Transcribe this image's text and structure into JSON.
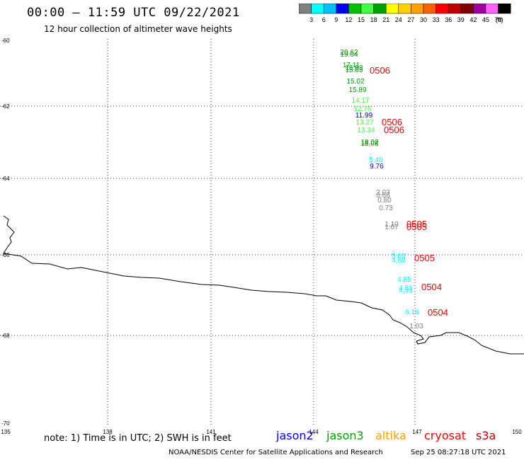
{
  "header": {
    "title": "00:00 – 11:59 UTC 09/22/2021",
    "subtitle": "12 hour collection of altimeter wave heights"
  },
  "colorbar": {
    "colors": [
      "#808080",
      "#00ffff",
      "#00c0ff",
      "#0000ff",
      "#00c000",
      "#40ff40",
      "#00a000",
      "#ffff00",
      "#ffd000",
      "#ffa000",
      "#ff6000",
      "#ff0000",
      "#c00000",
      "#800000",
      "#a000a0",
      "#ff60ff",
      "#000000"
    ],
    "labels": [
      "3",
      "6",
      "9",
      "12",
      "15",
      "18",
      "21",
      "24",
      "27",
      "30",
      "33",
      "36",
      "39",
      "42",
      "45",
      "70"
    ],
    "unit": "(ft)"
  },
  "axes": {
    "lat_labels": [
      "-60",
      "-62",
      "-64",
      "-66",
      "-68",
      "-70"
    ],
    "lon_labels": [
      "135",
      "138",
      "141",
      "144",
      "147",
      "150"
    ]
  },
  "observations": [
    {
      "text": "20.62",
      "color": "#00a000"
    },
    {
      "text": "19.04",
      "color": "#00a000"
    },
    {
      "text": "17.11",
      "color": "#00a000"
    },
    {
      "text": "15.93",
      "color": "#00a000"
    },
    {
      "text": "15.85",
      "color": "#00a000"
    },
    {
      "text": "15.02",
      "color": "#00a000"
    },
    {
      "text": "15.89",
      "color": "#00a000"
    },
    {
      "text": "14.17",
      "color": "#40ff40"
    },
    {
      "text": "12.76",
      "color": "#40ff40"
    },
    {
      "text": "11.99",
      "color": "#0000ff"
    },
    {
      "text": "13.27",
      "color": "#40ff40"
    },
    {
      "text": "13.34",
      "color": "#40ff40"
    },
    {
      "text": "18.02",
      "color": "#00a000"
    },
    {
      "text": "18.08",
      "color": "#00a000"
    },
    {
      "text": "5.40",
      "color": "#00ffff"
    },
    {
      "text": "9.76",
      "color": "#0000ff"
    },
    {
      "text": "2.03",
      "color": "#808080"
    },
    {
      "text": "0.66",
      "color": "#808080"
    },
    {
      "text": "0.80",
      "color": "#808080"
    },
    {
      "text": "0.73",
      "color": "#808080"
    },
    {
      "text": "1.10",
      "color": "#808080"
    },
    {
      "text": "1.07",
      "color": "#808080"
    },
    {
      "text": "5.03",
      "color": "#00ffff"
    },
    {
      "text": "4.89",
      "color": "#00ffff"
    },
    {
      "text": "4.85",
      "color": "#00ffff"
    },
    {
      "text": "4.81",
      "color": "#00ffff"
    },
    {
      "text": "4.93",
      "color": "#00ffff"
    },
    {
      "text": "6.16",
      "color": "#00ffff"
    },
    {
      "text": "1.03",
      "color": "#808080"
    }
  ],
  "time_labels": [
    "0506",
    "0506",
    "0506",
    "0505",
    "0505",
    "0505",
    "0504",
    "0504"
  ],
  "time_label_color": "#ff0000",
  "footer": {
    "note": "note: 1) Time is in UTC; 2) SWH is in feet",
    "satellites": [
      {
        "name": "jason2",
        "color": "#0000ff"
      },
      {
        "name": "jason3",
        "color": "#00a000"
      },
      {
        "name": "altika",
        "color": "#ffa000"
      },
      {
        "name": "cryosat",
        "color": "#ff0000"
      },
      {
        "name": "s3a",
        "color": "#c00000"
      }
    ],
    "credit": "NOAA/NESDIS Center for Satellite Applications and Research",
    "timestamp": "Sep 25 08:27:18 UTC 2021"
  }
}
